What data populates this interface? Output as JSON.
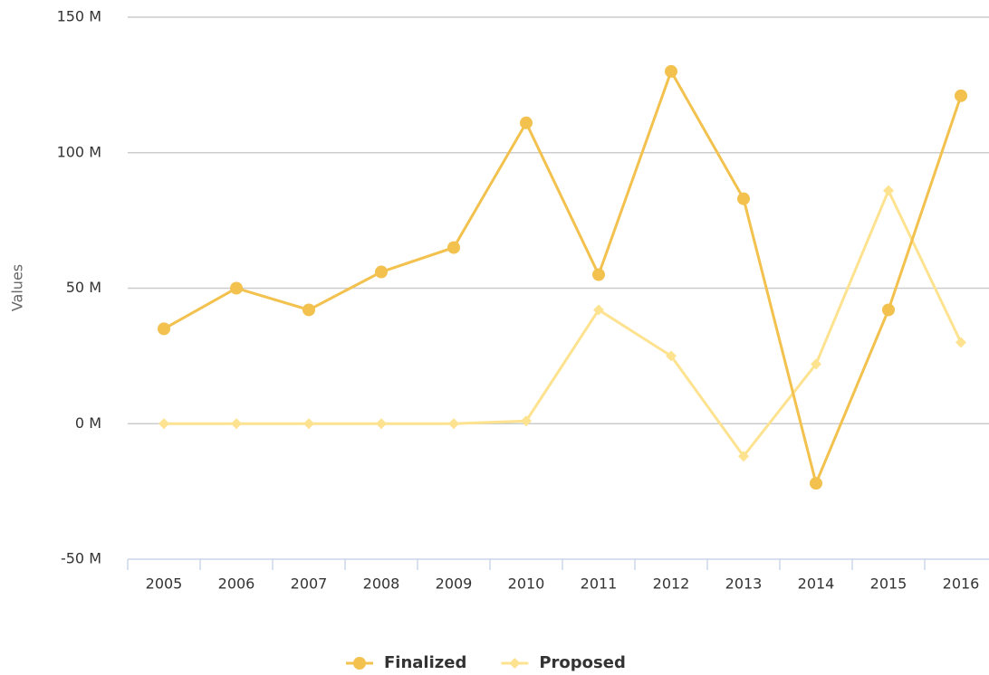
{
  "chart_data": {
    "type": "line",
    "y_label": "Values",
    "categories": [
      "2005",
      "2006",
      "2007",
      "2008",
      "2009",
      "2010",
      "2011",
      "2012",
      "2013",
      "2014",
      "2015",
      "2016"
    ],
    "series": [
      {
        "name": "Finalized",
        "color": "#f2c14e",
        "marker": "circle",
        "values": [
          35,
          50,
          42,
          56,
          65,
          111,
          55,
          130,
          83,
          -22,
          42,
          121
        ]
      },
      {
        "name": "Proposed",
        "color": "#fde28f",
        "marker": "diamond",
        "values": [
          0,
          0,
          0,
          0,
          0,
          1,
          42,
          25,
          -12,
          22,
          86,
          30
        ]
      }
    ],
    "ylim": [
      -50,
      150
    ],
    "yticks": [
      {
        "value": -50,
        "label": "-50 M"
      },
      {
        "value": 0,
        "label": "0 M"
      },
      {
        "value": 50,
        "label": "50 M"
      },
      {
        "value": 100,
        "label": "100 M"
      },
      {
        "value": 150,
        "label": "150 M"
      }
    ],
    "grid": true,
    "legend": "bottom"
  }
}
